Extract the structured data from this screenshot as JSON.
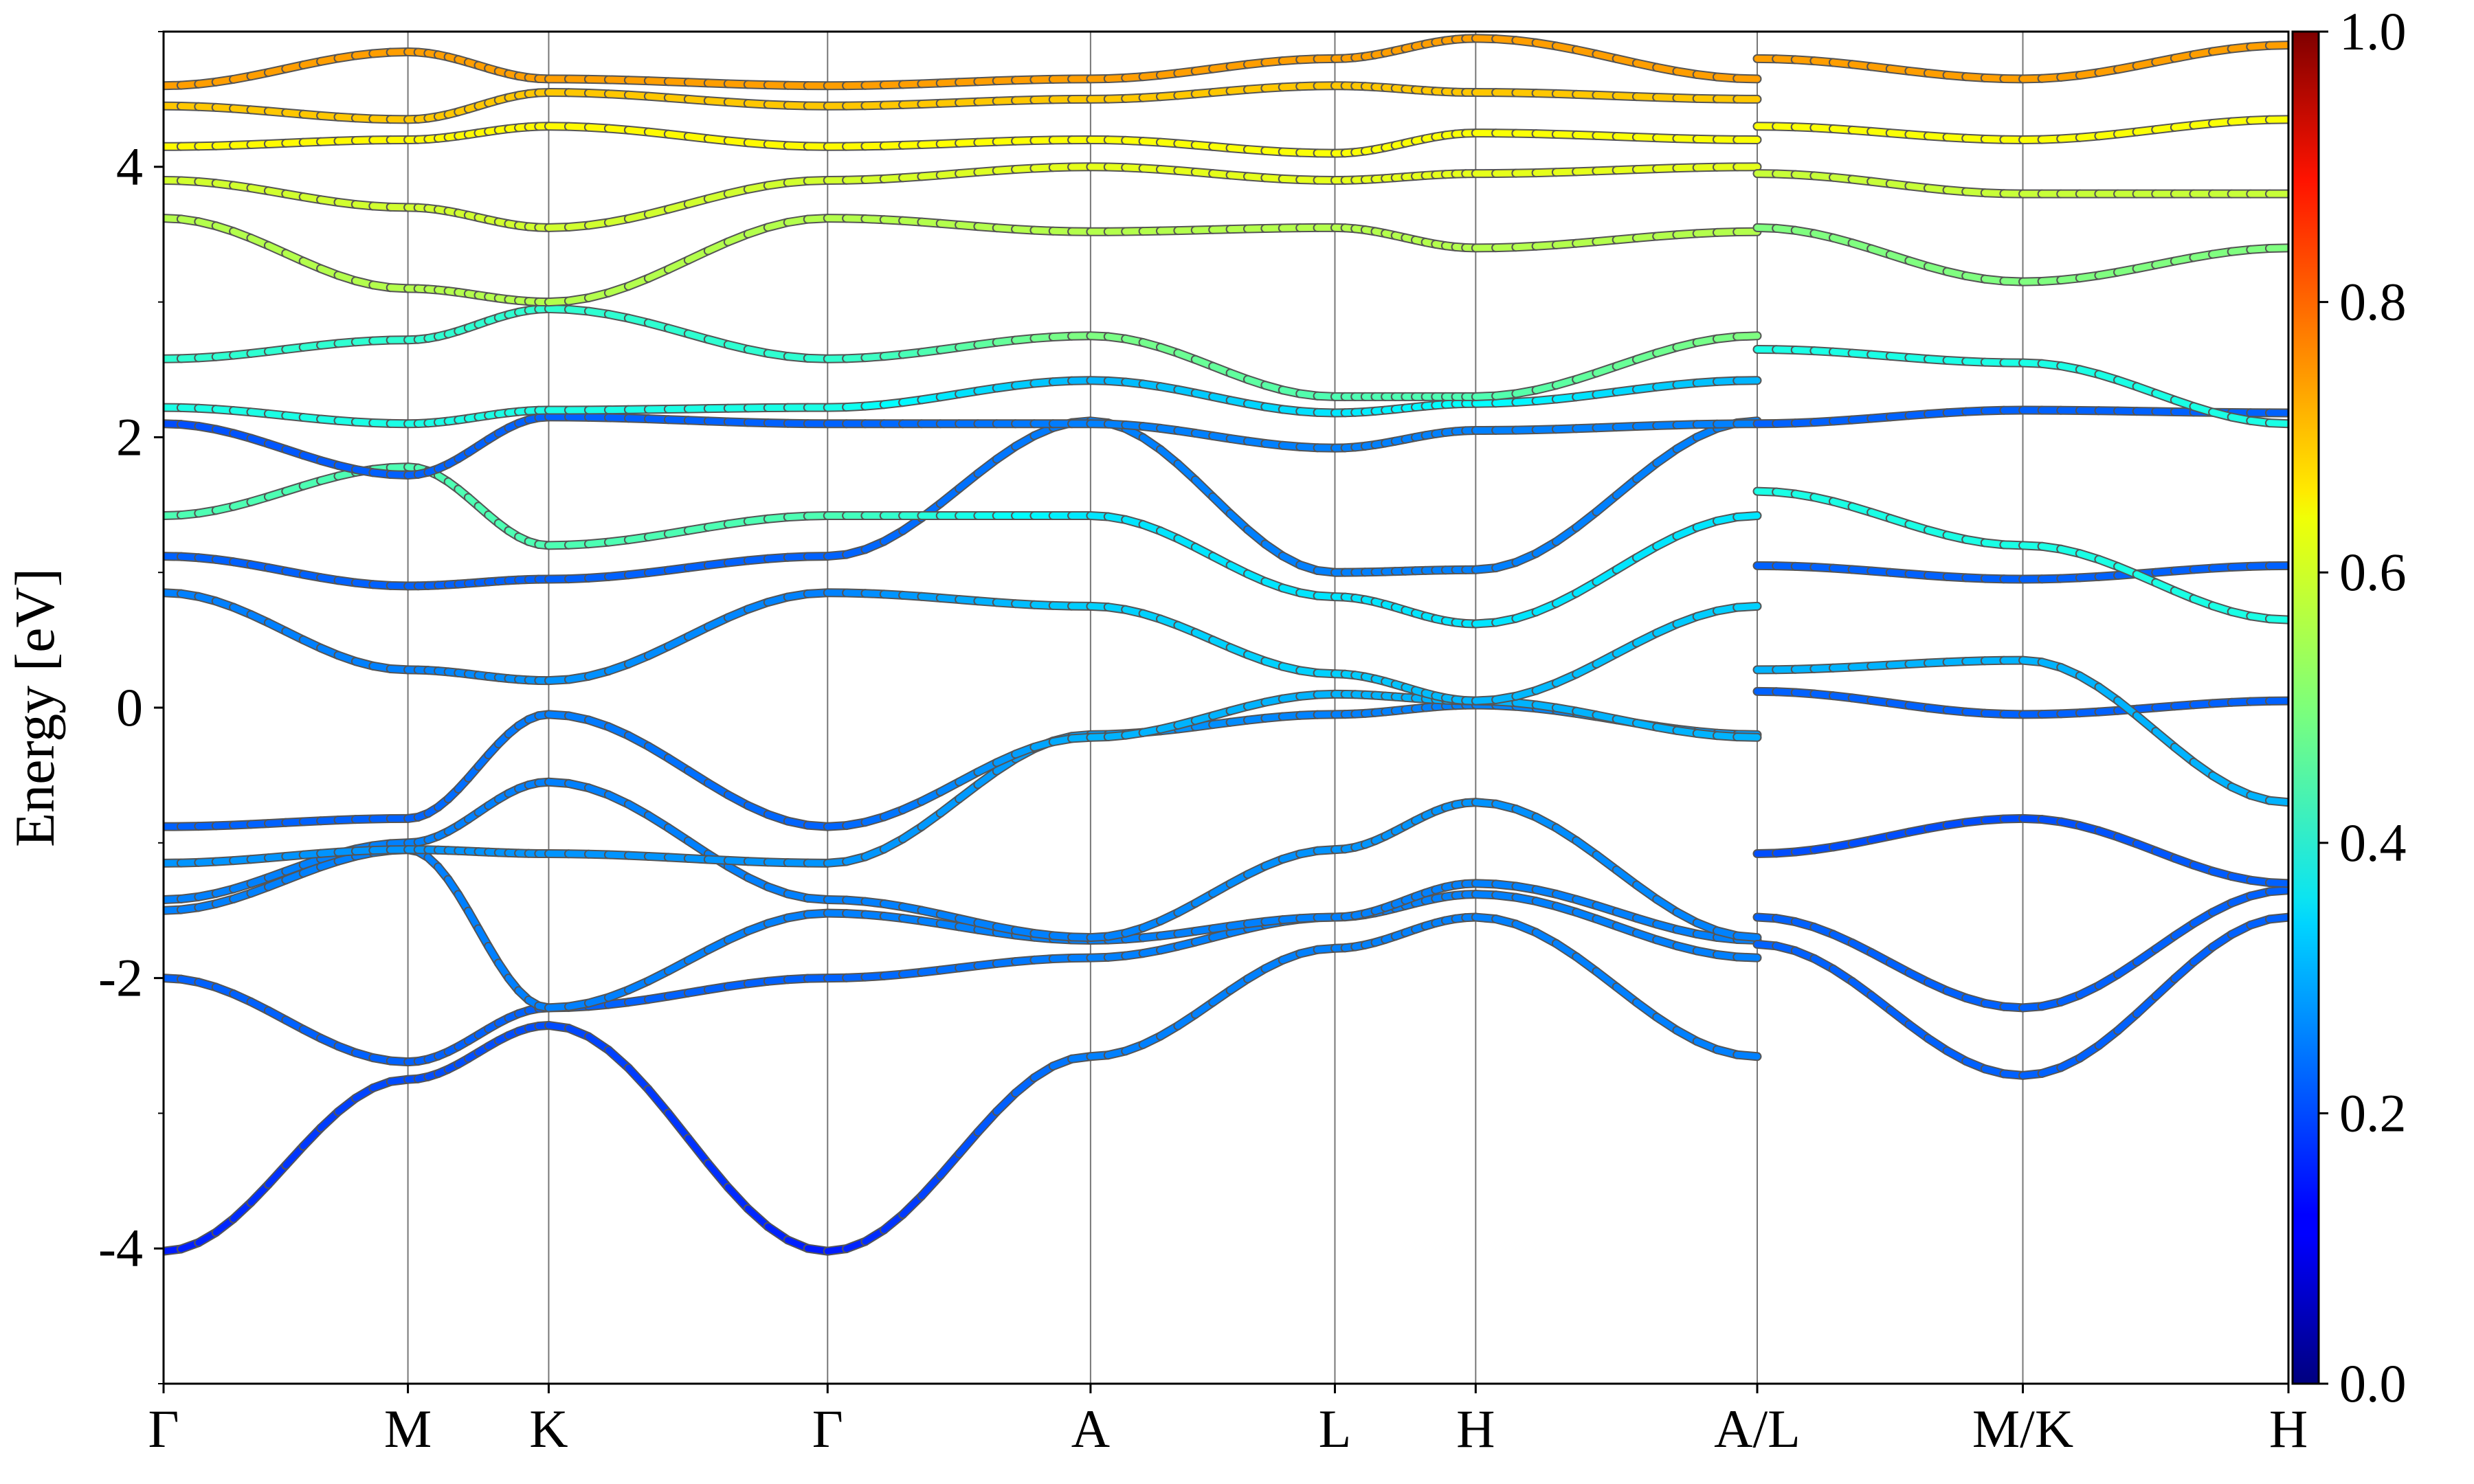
{
  "chart_data": {
    "type": "line",
    "ylabel": "Energy [eV]",
    "xlabel": "",
    "ylim": [
      -5,
      5
    ],
    "yticks": [
      -4,
      -2,
      0,
      2,
      4
    ],
    "ytick_labels": [
      "-4",
      "-2",
      "0",
      "2",
      "4"
    ],
    "kpath_positions": [
      0,
      0.92,
      1.45,
      2.5,
      3.49,
      4.41,
      4.94,
      6.0,
      7.0,
      8.0
    ],
    "kpath_labels": [
      "Γ",
      "M",
      "K",
      "Γ",
      "A",
      "L",
      "H",
      "A/L",
      "M/K",
      "H"
    ],
    "xlim": [
      0,
      8.0
    ],
    "colorbar": {
      "colormap": "jet",
      "range": [
        0.0,
        1.0
      ],
      "ticks": [
        0.0,
        0.2,
        0.4,
        0.6,
        0.8,
        1.0
      ],
      "tick_labels": [
        "0.0",
        "0.2",
        "0.4",
        "0.6",
        "0.8",
        "1.0"
      ]
    },
    "series": [
      {
        "x": [
          0,
          0.92,
          1.45,
          2.5,
          3.49,
          4.41,
          4.94,
          6.0
        ],
        "values": [
          -4.02,
          -2.75,
          -2.35,
          -4.02,
          -2.58,
          -1.78,
          -1.55,
          -2.58
        ],
        "weights": [
          0.15,
          0.2,
          0.2,
          0.15,
          0.25,
          0.25,
          0.25,
          0.25
        ]
      },
      {
        "x": [
          0,
          0.92,
          1.45,
          2.5,
          3.49,
          4.41,
          4.94,
          6.0
        ],
        "values": [
          -2.0,
          -2.62,
          -2.22,
          -2.0,
          -1.85,
          -1.55,
          -1.38,
          -1.85
        ],
        "weights": [
          0.22,
          0.22,
          0.22,
          0.22,
          0.25,
          0.25,
          0.25,
          0.25
        ]
      },
      {
        "x": [
          0,
          0.92,
          1.45,
          2.5,
          3.49,
          4.41,
          4.94,
          6.0
        ],
        "values": [
          -1.5,
          -1.05,
          -2.22,
          -1.52,
          -1.72,
          -1.55,
          -1.3,
          -1.72
        ],
        "weights": [
          0.25,
          0.25,
          0.25,
          0.25,
          0.25,
          0.25,
          0.25,
          0.25
        ]
      },
      {
        "x": [
          0,
          0.92,
          1.45,
          2.5,
          3.49,
          4.41,
          4.94,
          6.0
        ],
        "values": [
          -1.42,
          -1.0,
          -0.55,
          -1.42,
          -1.7,
          -1.05,
          -0.7,
          -1.7
        ],
        "weights": [
          0.25,
          0.25,
          0.25,
          0.25,
          0.25,
          0.27,
          0.27,
          0.25
        ]
      },
      {
        "x": [
          0,
          0.92,
          1.45,
          2.5,
          3.49,
          4.41,
          4.94,
          6.0
        ],
        "values": [
          -1.15,
          -1.05,
          -1.08,
          -1.15,
          -0.2,
          -0.05,
          0.02,
          -0.2
        ],
        "weights": [
          0.27,
          0.27,
          0.27,
          0.27,
          0.28,
          0.25,
          0.25,
          0.28
        ]
      },
      {
        "x": [
          0,
          0.92,
          1.45,
          2.5,
          3.49,
          4.41,
          4.94,
          6.0
        ],
        "values": [
          -0.88,
          -0.82,
          -0.05,
          -0.88,
          -0.22,
          0.1,
          0.05,
          -0.22
        ],
        "weights": [
          0.22,
          0.22,
          0.25,
          0.22,
          0.3,
          0.3,
          0.3,
          0.3
        ]
      },
      {
        "x": [
          0,
          0.92,
          1.45,
          2.5,
          3.49,
          4.41,
          4.94,
          6.0
        ],
        "values": [
          0.85,
          0.28,
          0.2,
          0.85,
          0.75,
          0.25,
          0.05,
          0.75
        ],
        "weights": [
          0.25,
          0.25,
          0.27,
          0.25,
          0.33,
          0.33,
          0.3,
          0.33
        ]
      },
      {
        "x": [
          0,
          0.92,
          1.45,
          2.5,
          3.49,
          4.41,
          4.94,
          6.0
        ],
        "values": [
          1.12,
          0.9,
          0.95,
          1.12,
          2.12,
          1.0,
          1.02,
          2.12
        ],
        "weights": [
          0.22,
          0.22,
          0.22,
          0.22,
          0.25,
          0.25,
          0.25,
          0.25
        ]
      },
      {
        "x": [
          0,
          0.92,
          1.45,
          2.5,
          3.49,
          4.41,
          4.94,
          6.0
        ],
        "values": [
          1.42,
          1.78,
          1.2,
          1.42,
          1.42,
          0.82,
          0.62,
          1.42
        ],
        "weights": [
          0.45,
          0.45,
          0.45,
          0.45,
          0.35,
          0.35,
          0.35,
          0.35
        ]
      },
      {
        "x": [
          0,
          0.92,
          1.45,
          2.5,
          3.49,
          4.41,
          4.94,
          6.0
        ],
        "values": [
          2.1,
          1.72,
          2.15,
          2.1,
          2.1,
          1.92,
          2.05,
          2.1
        ],
        "weights": [
          0.2,
          0.22,
          0.22,
          0.22,
          0.25,
          0.25,
          0.25,
          0.25
        ]
      },
      {
        "x": [
          0,
          0.92,
          1.45,
          2.5,
          3.49,
          4.41,
          4.94,
          6.0
        ],
        "values": [
          2.22,
          2.1,
          2.2,
          2.22,
          2.42,
          2.18,
          2.25,
          2.42
        ],
        "weights": [
          0.4,
          0.4,
          0.4,
          0.4,
          0.3,
          0.35,
          0.38,
          0.3
        ]
      },
      {
        "x": [
          0,
          0.92,
          1.45,
          2.5,
          3.49,
          4.41,
          4.94,
          6.0
        ],
        "values": [
          2.58,
          2.72,
          2.95,
          2.58,
          2.75,
          2.3,
          2.3,
          2.75
        ],
        "weights": [
          0.42,
          0.42,
          0.42,
          0.42,
          0.5,
          0.45,
          0.45,
          0.5
        ]
      },
      {
        "x": [
          0,
          0.92,
          1.45,
          2.5,
          3.49,
          4.41,
          4.94,
          6.0
        ],
        "values": [
          3.62,
          3.1,
          3.0,
          3.62,
          3.52,
          3.55,
          3.4,
          3.52
        ],
        "weights": [
          0.55,
          0.55,
          0.55,
          0.55,
          0.55,
          0.55,
          0.55,
          0.55
        ]
      },
      {
        "x": [
          0,
          0.92,
          1.45,
          2.5,
          3.49,
          4.41,
          4.94,
          6.0
        ],
        "values": [
          3.9,
          3.7,
          3.55,
          3.9,
          4.0,
          3.9,
          3.95,
          4.0
        ],
        "weights": [
          0.58,
          0.58,
          0.58,
          0.58,
          0.6,
          0.6,
          0.6,
          0.6
        ]
      },
      {
        "x": [
          0,
          0.92,
          1.45,
          2.5,
          3.49,
          4.41,
          4.94,
          6.0
        ],
        "values": [
          4.15,
          4.2,
          4.3,
          4.15,
          4.2,
          4.1,
          4.25,
          4.2
        ],
        "weights": [
          0.63,
          0.63,
          0.63,
          0.63,
          0.62,
          0.62,
          0.62,
          0.62
        ]
      },
      {
        "x": [
          0,
          0.92,
          1.45,
          2.5,
          3.49,
          4.41,
          4.94,
          6.0
        ],
        "values": [
          4.45,
          4.35,
          4.55,
          4.45,
          4.5,
          4.6,
          4.55,
          4.5
        ],
        "weights": [
          0.68,
          0.68,
          0.68,
          0.68,
          0.68,
          0.68,
          0.68,
          0.68
        ]
      },
      {
        "x": [
          0,
          0.92,
          1.45,
          2.5,
          3.49,
          4.41,
          4.94,
          6.0
        ],
        "values": [
          4.6,
          4.85,
          4.65,
          4.6,
          4.65,
          4.8,
          4.95,
          4.65
        ],
        "weights": [
          0.72,
          0.72,
          0.72,
          0.72,
          0.72,
          0.72,
          0.72,
          0.72
        ]
      },
      {
        "x": [
          6.0,
          7.0,
          8.0
        ],
        "values": [
          -1.75,
          -2.72,
          -1.55
        ],
        "weights": [
          0.22,
          0.22,
          0.22
        ]
      },
      {
        "x": [
          6.0,
          7.0,
          8.0
        ],
        "values": [
          -1.55,
          -2.22,
          -1.35
        ],
        "weights": [
          0.22,
          0.22,
          0.22
        ]
      },
      {
        "x": [
          6.0,
          7.0,
          8.0
        ],
        "values": [
          -1.08,
          -0.82,
          -1.3
        ],
        "weights": [
          0.2,
          0.2,
          0.22
        ]
      },
      {
        "x": [
          6.0,
          7.0,
          8.0
        ],
        "values": [
          0.12,
          -0.05,
          0.05
        ],
        "weights": [
          0.22,
          0.22,
          0.22
        ]
      },
      {
        "x": [
          6.0,
          7.0,
          8.0
        ],
        "values": [
          0.28,
          0.35,
          -0.7
        ],
        "weights": [
          0.3,
          0.3,
          0.3
        ]
      },
      {
        "x": [
          6.0,
          7.0,
          8.0
        ],
        "values": [
          1.05,
          0.95,
          1.05
        ],
        "weights": [
          0.22,
          0.22,
          0.22
        ]
      },
      {
        "x": [
          6.0,
          7.0,
          8.0
        ],
        "values": [
          1.6,
          1.2,
          0.65
        ],
        "weights": [
          0.4,
          0.4,
          0.4
        ]
      },
      {
        "x": [
          6.0,
          7.0,
          8.0
        ],
        "values": [
          2.1,
          2.2,
          2.18
        ],
        "weights": [
          0.22,
          0.22,
          0.22
        ]
      },
      {
        "x": [
          6.0,
          7.0,
          8.0
        ],
        "values": [
          2.65,
          2.55,
          2.1
        ],
        "weights": [
          0.4,
          0.4,
          0.4
        ]
      },
      {
        "x": [
          6.0,
          7.0,
          8.0
        ],
        "values": [
          3.55,
          3.15,
          3.4
        ],
        "weights": [
          0.5,
          0.5,
          0.5
        ]
      },
      {
        "x": [
          6.0,
          7.0,
          8.0
        ],
        "values": [
          3.95,
          3.8,
          3.8
        ],
        "weights": [
          0.57,
          0.57,
          0.57
        ]
      },
      {
        "x": [
          6.0,
          7.0,
          8.0
        ],
        "values": [
          4.3,
          4.2,
          4.35
        ],
        "weights": [
          0.62,
          0.62,
          0.62
        ]
      },
      {
        "x": [
          6.0,
          7.0,
          8.0
        ],
        "values": [
          4.8,
          4.65,
          4.9
        ],
        "weights": [
          0.72,
          0.72,
          0.72
        ]
      }
    ]
  }
}
